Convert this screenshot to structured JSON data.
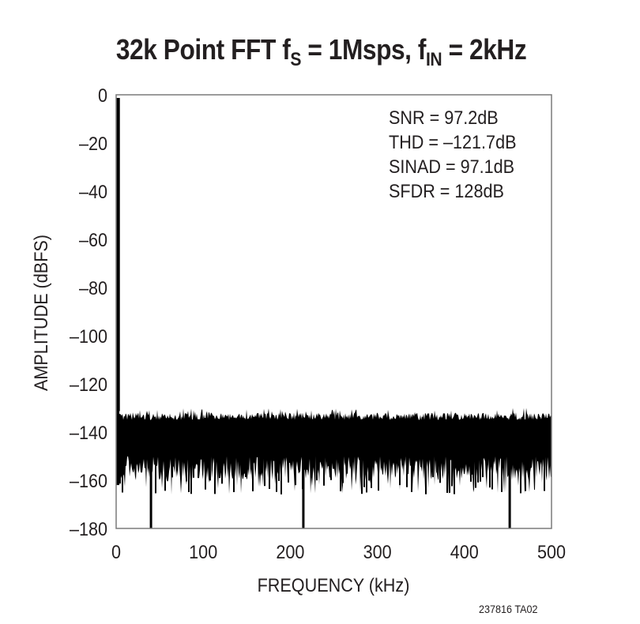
{
  "title": {
    "prefix": "32k Point FFT f",
    "fs_sub": "S",
    "mid": " = 1Msps, f",
    "fin_sub": "IN",
    "suffix": " = 2kHz"
  },
  "stats": {
    "snr": "SNR = 97.2dB",
    "thd": "THD = –121.7dB",
    "sinad": "SINAD = 97.1dB",
    "sfdr": "SFDR = 128dB"
  },
  "axes": {
    "xlabel": "FREQUENCY (kHz)",
    "ylabel": "AMPLITUDE (dBFS)",
    "xticks": [
      "0",
      "100",
      "200",
      "300",
      "400",
      "500"
    ],
    "yticks": [
      "0",
      "–20",
      "–40",
      "–60",
      "–80",
      "–100",
      "–120",
      "–140",
      "–160",
      "–180"
    ]
  },
  "footnote": "237816 TA02",
  "colors": {
    "trace": "#000000",
    "frame": "#7a7a7a",
    "text": "#231f20"
  },
  "chart_data": {
    "type": "line",
    "title": "32k Point FFT fS = 1Msps, fIN = 2kHz",
    "xlabel": "FREQUENCY (kHz)",
    "ylabel": "AMPLITUDE (dBFS)",
    "xlim": [
      0,
      500
    ],
    "ylim": [
      -180,
      0
    ],
    "xticks": [
      0,
      100,
      200,
      300,
      400,
      500
    ],
    "yticks": [
      0,
      -20,
      -40,
      -60,
      -80,
      -100,
      -120,
      -140,
      -160,
      -180
    ],
    "grid": false,
    "legend": null,
    "annotations": [
      "SNR = 97.2dB",
      "THD = –121.7dB",
      "SINAD = 97.1dB",
      "SFDR = 128dB"
    ],
    "fundamental": {
      "freq_khz": 2,
      "amplitude_dbfs": 0
    },
    "noise_floor": {
      "upper_envelope_dbfs": [
        -132,
        -134
      ],
      "typical_band_dbfs": [
        -150,
        -135
      ],
      "lower_envelope_dbfs": [
        -165,
        -150
      ],
      "deep_nulls": [
        {
          "freq_khz": 40,
          "amplitude_dbfs": -180
        },
        {
          "freq_khz": 215,
          "amplitude_dbfs": -180
        },
        {
          "freq_khz": 452,
          "amplitude_dbfs": -180
        }
      ]
    },
    "series": [
      {
        "name": "FFT",
        "x": [
          0,
          2,
          5,
          20,
          40,
          60,
          80,
          100,
          120,
          140,
          160,
          180,
          200,
          215,
          240,
          260,
          280,
          300,
          320,
          340,
          360,
          380,
          400,
          420,
          440,
          452,
          470,
          490,
          500
        ],
        "upper": [
          -130,
          0,
          -130,
          -133,
          -134,
          -133,
          -134,
          -133,
          -133,
          -134,
          -133,
          -133,
          -134,
          -133,
          -134,
          -133,
          -132,
          -134,
          -134,
          -133,
          -134,
          -133,
          -134,
          -133,
          -132,
          -133,
          -133,
          -134,
          -133
        ],
        "lower": [
          -160,
          -160,
          -162,
          -160,
          -180,
          -162,
          -165,
          -161,
          -160,
          -163,
          -160,
          -163,
          -162,
          -180,
          -163,
          -165,
          -161,
          -163,
          -165,
          -162,
          -161,
          -165,
          -163,
          -162,
          -164,
          -180,
          -162,
          -165,
          -157
        ]
      }
    ]
  }
}
